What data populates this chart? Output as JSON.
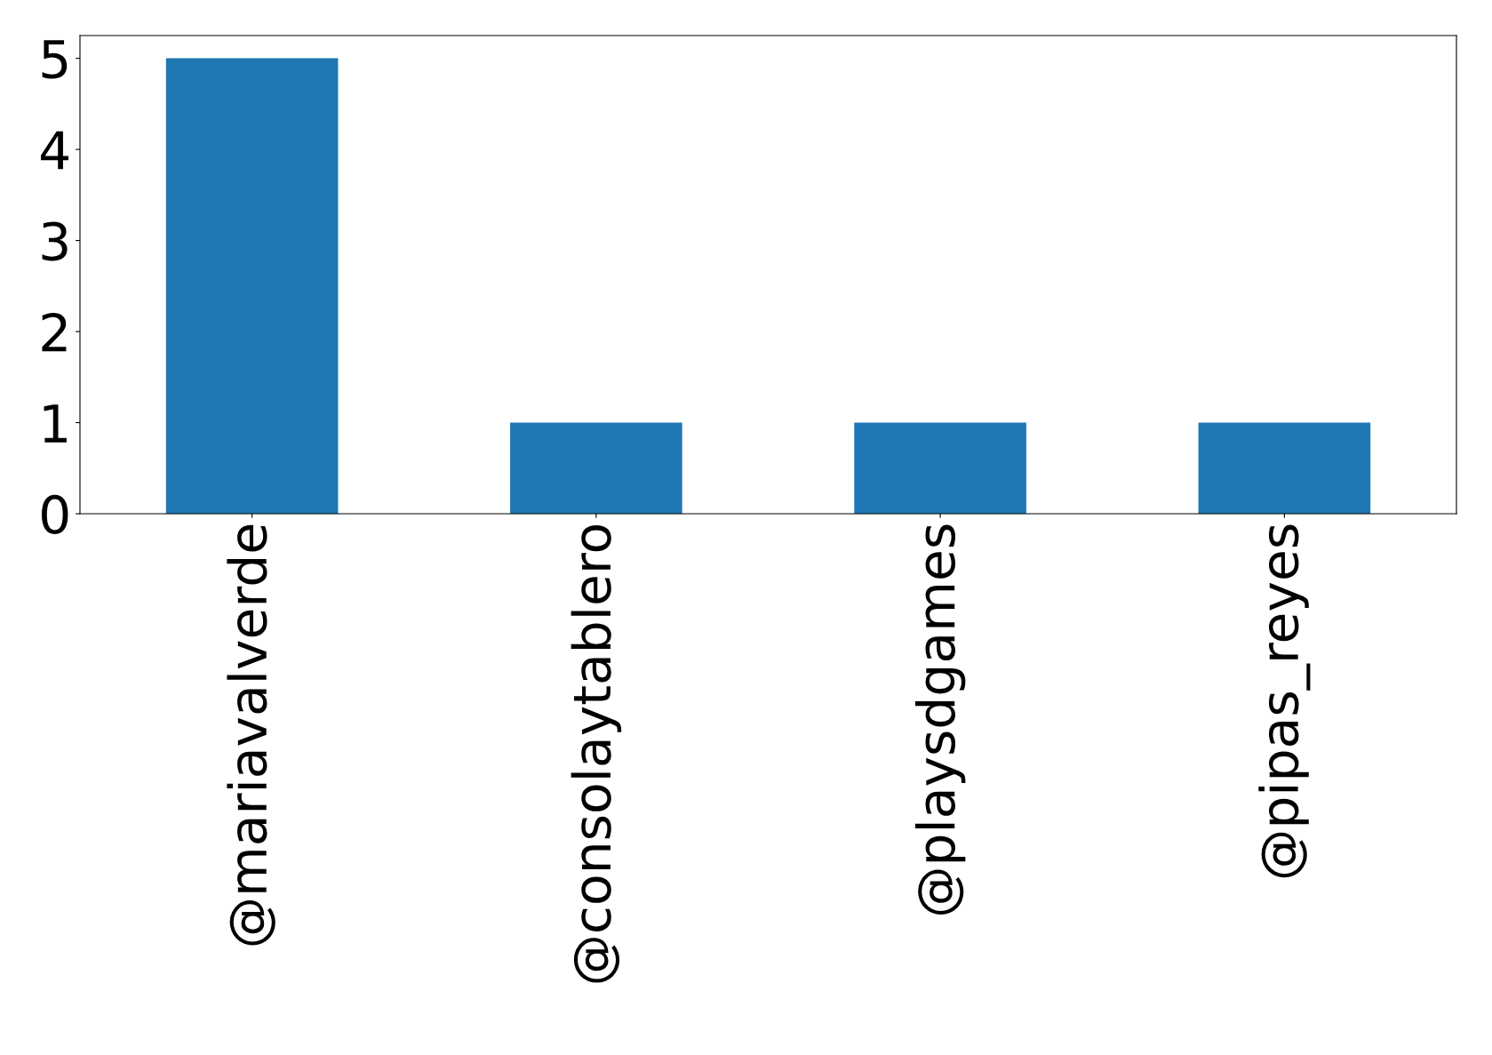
{
  "chart_data": {
    "type": "bar",
    "categories": [
      "@mariavalverde",
      "@consolaytablero",
      "@playsdgames",
      "@pipas_reyes"
    ],
    "values": [
      5,
      1,
      1,
      1
    ],
    "color": "#1f77b4",
    "ylim": [
      0,
      5.25
    ],
    "yticks": [
      0,
      1,
      2,
      3,
      4,
      5
    ],
    "grid": false,
    "legend": false
  }
}
